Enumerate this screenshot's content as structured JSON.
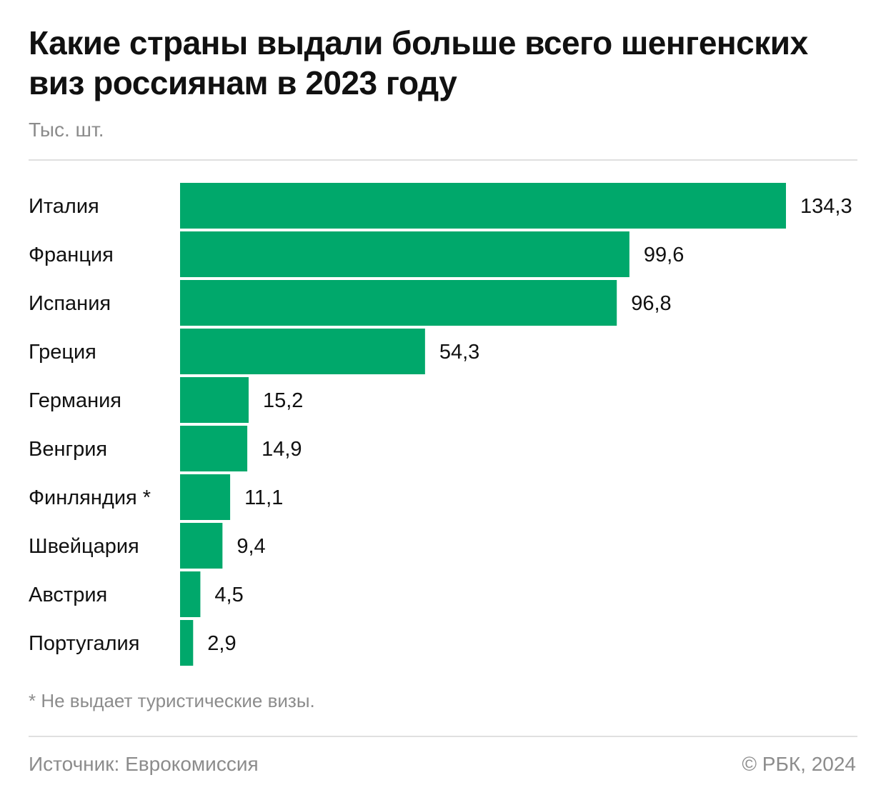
{
  "header": {
    "title": "Какие страны выдали больше всего шенгенских виз россиянам в 2023 году",
    "subtitle": "Тыс. шт."
  },
  "footer": {
    "footnote": "* Не выдает туристические визы.",
    "source": "Источник: Еврокомиссия",
    "copyright": "© РБК, 2024"
  },
  "colors": {
    "bar": "#00a86b",
    "label": "#111111",
    "muted": "#8c8c8c"
  },
  "chart_data": {
    "type": "bar",
    "orientation": "horizontal",
    "title": "Какие страны выдали больше всего шенгенских виз россиянам в 2023 году",
    "unit": "Тыс. шт.",
    "categories": [
      "Италия",
      "Франция",
      "Испания",
      "Греция",
      "Германия",
      "Венгрия",
      "Финляндия *",
      "Швейцария",
      "Австрия",
      "Португалия"
    ],
    "values": [
      134.3,
      99.6,
      96.8,
      54.3,
      15.2,
      14.9,
      11.1,
      9.4,
      4.5,
      2.9
    ],
    "value_labels": [
      "134,3",
      "99,6",
      "96,8",
      "54,3",
      "15,2",
      "14,9",
      "11,1",
      "9,4",
      "4,5",
      "2,9"
    ],
    "xlim": [
      0,
      134.3
    ],
    "grid": false,
    "legend": "none"
  }
}
